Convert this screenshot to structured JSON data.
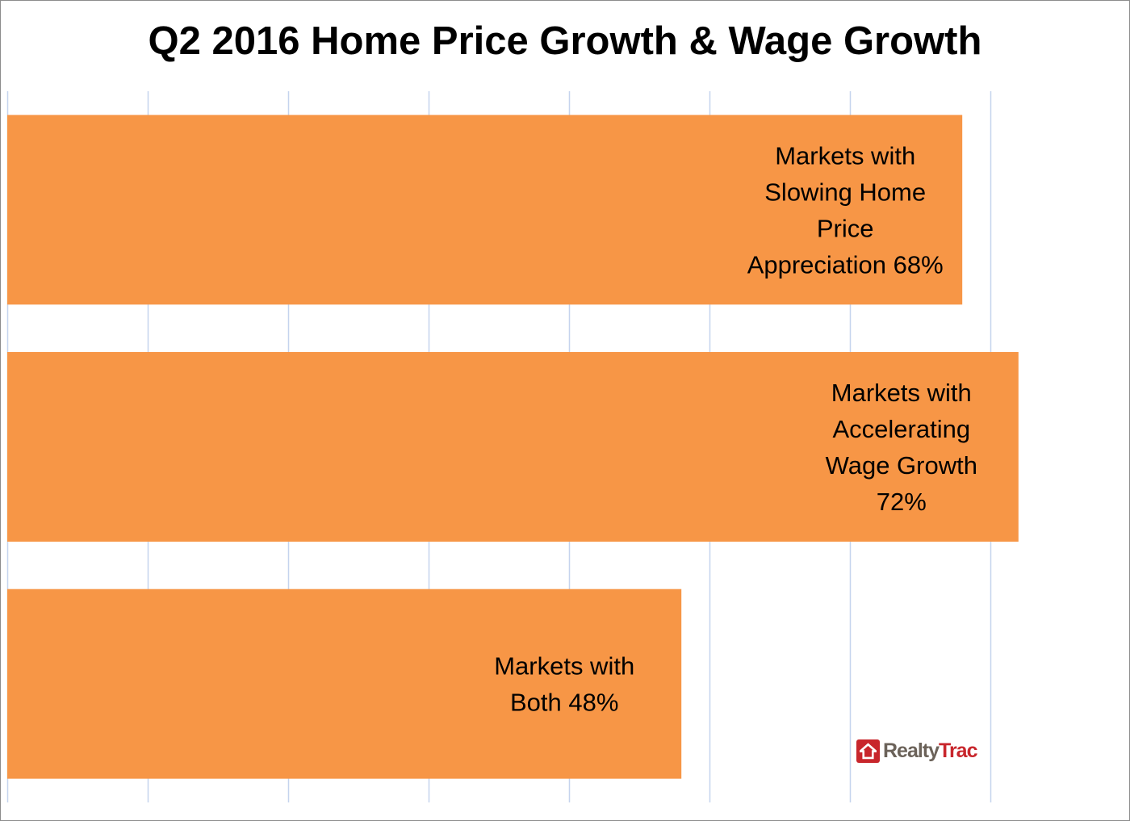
{
  "chart_data": {
    "type": "bar",
    "orientation": "horizontal",
    "title": "Q2 2016 Home Price Growth & Wage Growth",
    "xlim": [
      0,
      80
    ],
    "grid": true,
    "grid_step": 10,
    "bar_color": "#f79646",
    "grid_color": "#c5d4ee",
    "bars": [
      {
        "value": 68,
        "label_lines": [
          "Markets with",
          "Slowing Home",
          "Price",
          "Appreciation 68%"
        ]
      },
      {
        "value": 72,
        "label_lines": [
          "Markets with",
          "Accelerating",
          "Wage Growth",
          "72%"
        ]
      },
      {
        "value": 48,
        "label_lines": [
          "Markets with",
          "Both 48%"
        ]
      }
    ]
  },
  "logo": {
    "text_a": "Realty",
    "text_b": "Trac",
    "brand_color": "#c8262c"
  }
}
